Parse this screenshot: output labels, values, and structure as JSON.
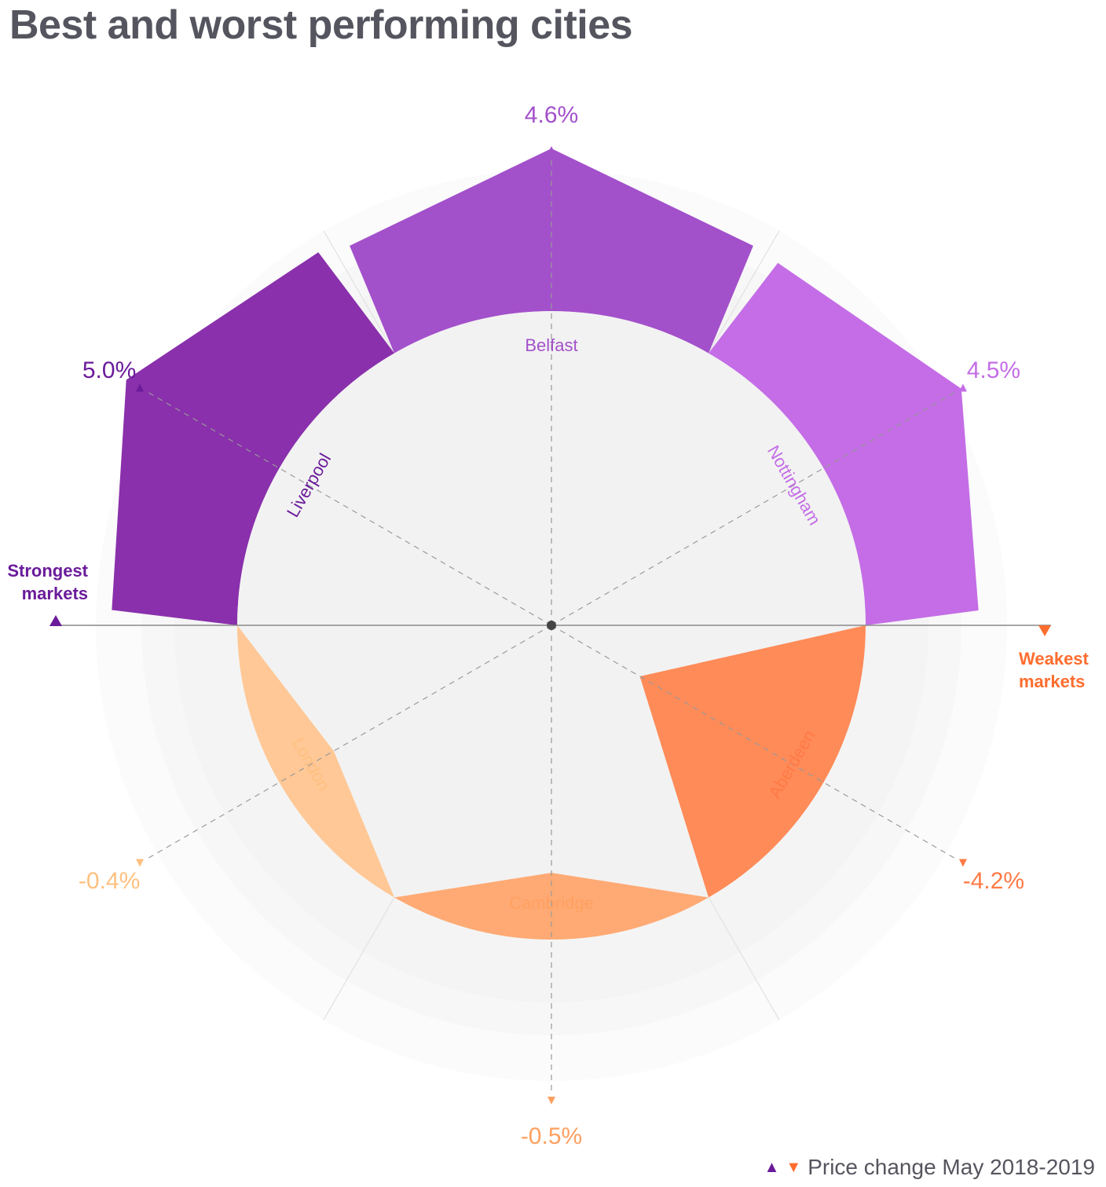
{
  "title": "Best and worst performing cities",
  "legend": {
    "label": "Price change May 2018-2019",
    "up_color": "#6a1b9a",
    "down_color": "#ff6d2e"
  },
  "strong_label": [
    "Strongest",
    "markets"
  ],
  "weak_label": [
    "Weakest",
    "markets"
  ],
  "strong_color": "#6a1b9a",
  "weak_color": "#ff6d2e",
  "chart_data": {
    "type": "radial-bar",
    "title": "Best and worst performing cities",
    "series": [
      {
        "city": "Liverpool",
        "value": 5.0,
        "label": "5.0%",
        "group": "strongest",
        "color": "#8a30ac",
        "label_color": "#6a1b9a"
      },
      {
        "city": "Belfast",
        "value": 4.6,
        "label": "4.6%",
        "group": "strongest",
        "color": "#a350cb",
        "label_color": "#a350cb"
      },
      {
        "city": "Nottingham",
        "value": 4.5,
        "label": "4.5%",
        "group": "strongest",
        "color": "#c46de6",
        "label_color": "#c46de6"
      },
      {
        "city": "Aberdeen",
        "value": -4.2,
        "label": "-4.2%",
        "group": "weakest",
        "color": "#ff8b58",
        "label_color": "#ff7a45"
      },
      {
        "city": "Cambridge",
        "value": -0.5,
        "label": "-0.5%",
        "group": "weakest",
        "color": "#ffaa74",
        "label_color": "#ffa060"
      },
      {
        "city": "London",
        "value": -0.4,
        "label": "-0.4%",
        "group": "weakest",
        "color": "#ffc896",
        "label_color": "#ffc080"
      }
    ]
  }
}
